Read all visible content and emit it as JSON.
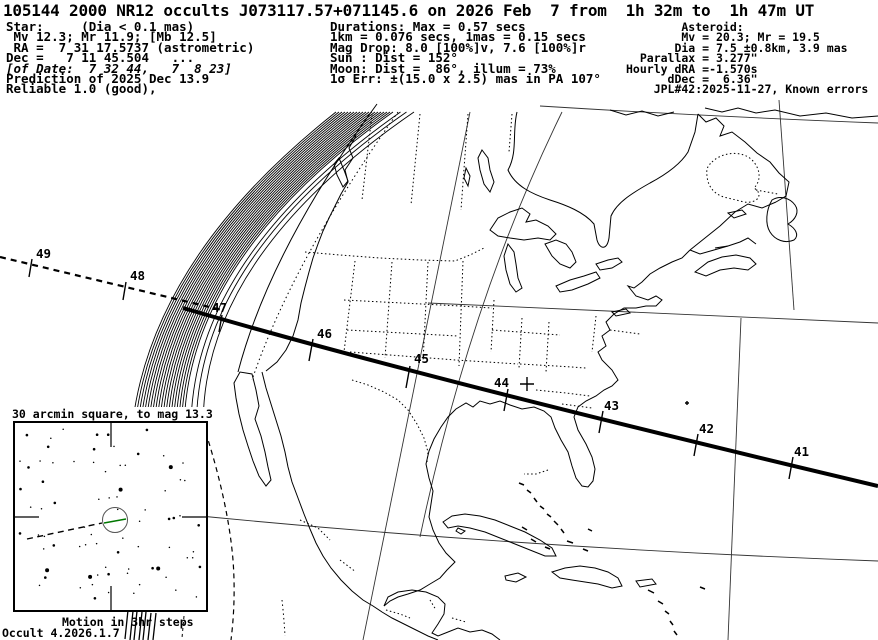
{
  "title": "105144 2000 NR12 occults J073117.57+071145.6 on 2026 Feb  7 from  1h 32m to  1h 47m UT",
  "header": {
    "star_block_top": "Star:     (Dia < 0.1 mas)\n Mv 12.3; Mr 11.9; [Mb 12.5]\n RA =  7 31 17.5737 (astrometric)\nDec =   7 11 45.504   ...",
    "star_block_date": "[of Date:  7 32 44,   7  8 23]",
    "star_block_bottom": "Prediction of 2025 Dec 13.9\nReliable 1.0 (good),",
    "event_block": "Durations: Max = 0.57 secs\n1km = 0.076 secs, 1mas = 0.15 secs\nMag Drop: 8.0 [100%]v, 7.6 [100%]r\nSun : Dist = 152°\nMoon: Dist =  86°, illum = 73%\n1σ Err: ±(15.0 x 2.5) mas in PA 107°",
    "asteroid_block": "        Asteroid:\n        Mv = 20.3; Mr = 19.5\n       Dia = 7.5 ±0.8km, 3.9 mas\n  Parallax = 3.277\"\nHourly dRA =-1.570s\n      dDec =  6.36\"\n    JPL#42:2025-11-27, Known errors"
  },
  "map": {
    "tick_labels": [
      "49",
      "48",
      "47",
      "46",
      "45",
      "44",
      "43",
      "42",
      "41"
    ],
    "path_color": "#000000",
    "land_color": "#000000",
    "background_color": "#ffffff",
    "motion_vector_color": "#007700"
  },
  "inset": {
    "title": "30 arcmin square, to mag 13.3",
    "footer": "Motion in 3hr steps"
  },
  "version": "Occult 4.2026.1.7"
}
